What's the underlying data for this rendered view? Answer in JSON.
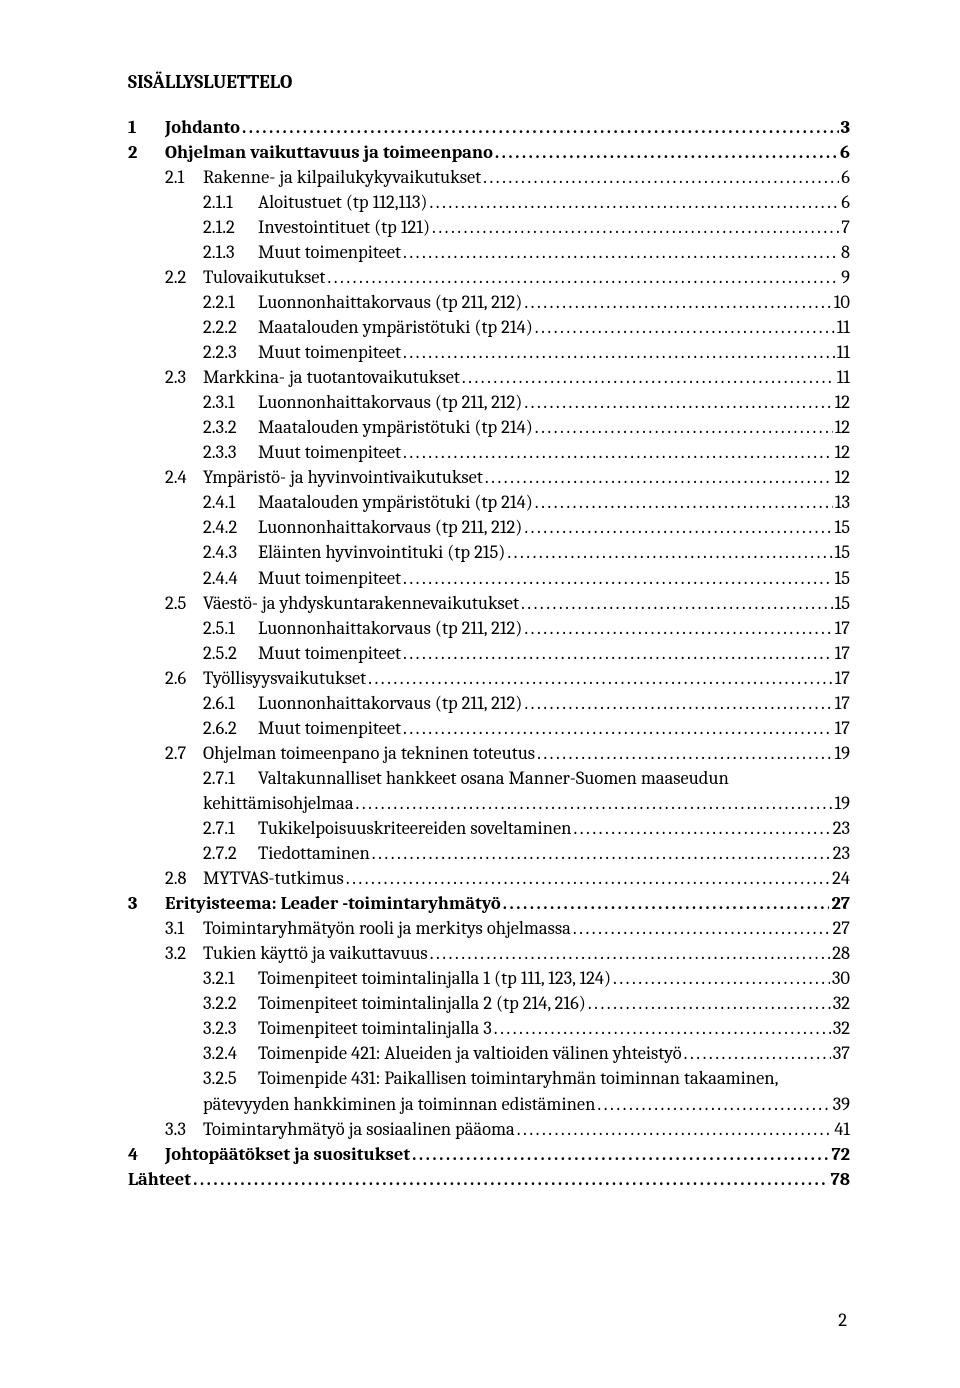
{
  "heading": "SISÄLLYSLUETTELO",
  "footer_page": "2",
  "toc": [
    {
      "level": 0,
      "bold": true,
      "num": "1",
      "title": "Johdanto",
      "page": "3",
      "num_w": "w-main"
    },
    {
      "level": 0,
      "bold": true,
      "num": "2",
      "title": "Ohjelman  vaikuttavuus ja toimeenpano",
      "page": "6",
      "num_w": "w-main"
    },
    {
      "level": 1,
      "bold": false,
      "num": "2.1",
      "title": "Rakenne- ja kilpailukykyvaikutukset",
      "page": "6",
      "num_w": "w-sub"
    },
    {
      "level": 2,
      "bold": false,
      "num": "2.1.1",
      "title": "Aloitustuet (tp 112,113)",
      "page": "6",
      "num_w": "w-subsub"
    },
    {
      "level": 2,
      "bold": false,
      "num": "2.1.2",
      "title": "Investointituet (tp 121)",
      "page": "7",
      "num_w": "w-subsub"
    },
    {
      "level": 2,
      "bold": false,
      "num": "2.1.3",
      "title": "Muut toimenpiteet",
      "page": "8",
      "num_w": "w-subsub"
    },
    {
      "level": 1,
      "bold": false,
      "num": "2.2",
      "title": "Tulovaikutukset",
      "page": "9",
      "num_w": "w-sub"
    },
    {
      "level": 2,
      "bold": false,
      "num": "2.2.1",
      "title": "Luonnonhaittakorvaus (tp 211, 212)",
      "page": "10",
      "num_w": "w-subsub"
    },
    {
      "level": 2,
      "bold": false,
      "num": "2.2.2",
      "title": "Maatalouden ympäristötuki (tp 214)",
      "page": "11",
      "num_w": "w-subsub"
    },
    {
      "level": 2,
      "bold": false,
      "num": "2.2.3",
      "title": "Muut toimenpiteet",
      "page": "11",
      "num_w": "w-subsub"
    },
    {
      "level": 1,
      "bold": false,
      "num": "2.3",
      "title": "Markkina- ja tuotantovaikutukset",
      "page": "11",
      "num_w": "w-sub"
    },
    {
      "level": 2,
      "bold": false,
      "num": "2.3.1",
      "title": "Luonnonhaittakorvaus (tp 211, 212)",
      "page": "12",
      "num_w": "w-subsub"
    },
    {
      "level": 2,
      "bold": false,
      "num": "2.3.2",
      "title": "Maatalouden ympäristötuki (tp 214)",
      "page": "12",
      "num_w": "w-subsub"
    },
    {
      "level": 2,
      "bold": false,
      "num": "2.3.3",
      "title": "Muut toimenpiteet",
      "page": "12",
      "num_w": "w-subsub"
    },
    {
      "level": 1,
      "bold": false,
      "num": "2.4",
      "title": "Ympäristö- ja hyvinvointivaikutukset",
      "page": "12",
      "num_w": "w-sub"
    },
    {
      "level": 2,
      "bold": false,
      "num": "2.4.1",
      "title": "Maatalouden ympäristötuki (tp 214)",
      "page": "13",
      "num_w": "w-subsub"
    },
    {
      "level": 2,
      "bold": false,
      "num": "2.4.2",
      "title": "Luonnonhaittakorvaus (tp 211, 212)",
      "page": "15",
      "num_w": "w-subsub"
    },
    {
      "level": 2,
      "bold": false,
      "num": "2.4.3",
      "title": "Eläinten hyvinvointituki (tp 215)",
      "page": "15",
      "num_w": "w-subsub"
    },
    {
      "level": 2,
      "bold": false,
      "num": "2.4.4",
      "title": "Muut toimenpiteet",
      "page": "15",
      "num_w": "w-subsub"
    },
    {
      "level": 1,
      "bold": false,
      "num": "2.5",
      "title": "Väestö- ja yhdyskuntarakennevaikutukset",
      "page": "15",
      "num_w": "w-sub"
    },
    {
      "level": 2,
      "bold": false,
      "num": "2.5.1",
      "title": "Luonnonhaittakorvaus (tp 211, 212)",
      "page": "17",
      "num_w": "w-subsub"
    },
    {
      "level": 2,
      "bold": false,
      "num": "2.5.2",
      "title": "Muut toimenpiteet",
      "page": "17",
      "num_w": "w-subsub"
    },
    {
      "level": 1,
      "bold": false,
      "num": "2.6",
      "title": "Työllisyysvaikutukset",
      "page": "17",
      "num_w": "w-sub"
    },
    {
      "level": 2,
      "bold": false,
      "num": "2.6.1",
      "title": "Luonnonhaittakorvaus (tp 211, 212)",
      "page": "17",
      "num_w": "w-subsub"
    },
    {
      "level": 2,
      "bold": false,
      "num": "2.6.2",
      "title": "Muut toimenpiteet",
      "page": "17",
      "num_w": "w-subsub"
    },
    {
      "level": 1,
      "bold": false,
      "num": "2.7",
      "title": "Ohjelman toimeenpano ja tekninen toteutus",
      "page": "19",
      "num_w": "w-sub"
    },
    {
      "level": 2,
      "bold": false,
      "num": "2.7.1",
      "title": "Valtakunnalliset    hankkeet    osana    Manner-Suomen    maaseudun",
      "page": null,
      "num_w": "w-subsub",
      "noleader": true
    },
    {
      "level": 2,
      "bold": false,
      "num": "",
      "title": "kehittämisohjelmaa",
      "page": "19",
      "num_w": "w-subsub",
      "continuation": true
    },
    {
      "level": 2,
      "bold": false,
      "num": "2.7.1",
      "title": "Tukikelpoisuuskriteereiden soveltaminen",
      "page": "23",
      "num_w": "w-subsub"
    },
    {
      "level": 2,
      "bold": false,
      "num": "2.7.2",
      "title": "Tiedottaminen",
      "page": "23",
      "num_w": "w-subsub"
    },
    {
      "level": 1,
      "bold": false,
      "num": "2.8",
      "title": "MYTVAS-tutkimus",
      "page": "24",
      "num_w": "w-sub"
    },
    {
      "level": 0,
      "bold": true,
      "num": "3",
      "title": "Erityisteema: Leader -toimintaryhmätyö",
      "page": "27",
      "num_w": "w-main"
    },
    {
      "level": 1,
      "bold": false,
      "num": "3.1",
      "title": "Toimintaryhmätyön rooli ja merkitys ohjelmassa",
      "page": "27",
      "num_w": "w-sub"
    },
    {
      "level": 1,
      "bold": false,
      "num": "3.2",
      "title": "Tukien käyttö ja vaikuttavuus",
      "page": "28",
      "num_w": "w-sub"
    },
    {
      "level": 2,
      "bold": false,
      "num": "3.2.1",
      "title": "Toimenpiteet toimintalinjalla 1 (tp 111, 123, 124)",
      "page": "30",
      "num_w": "w-subsub"
    },
    {
      "level": 2,
      "bold": false,
      "num": "3.2.2",
      "title": "Toimenpiteet toimintalinjalla 2 (tp 214, 216)",
      "page": "32",
      "num_w": "w-subsub"
    },
    {
      "level": 2,
      "bold": false,
      "num": "3.2.3",
      "title": "Toimenpiteet toimintalinjalla 3",
      "page": "32",
      "num_w": "w-subsub"
    },
    {
      "level": 2,
      "bold": false,
      "num": "3.2.4",
      "title": "Toimenpide 421: Alueiden ja valtioiden välinen yhteistyö",
      "page": "37",
      "num_w": "w-subsub"
    },
    {
      "level": 2,
      "bold": false,
      "num": "3.2.5",
      "title": "Toimenpide  431:  Paikallisen  toimintaryhmän  toiminnan  takaaminen,",
      "page": null,
      "num_w": "w-subsub",
      "noleader": true
    },
    {
      "level": 2,
      "bold": false,
      "num": "",
      "title": "pätevyyden hankkiminen ja toiminnan edistäminen",
      "page": "39",
      "num_w": "w-subsub",
      "continuation": true
    },
    {
      "level": 1,
      "bold": false,
      "num": "3.3",
      "title": "Toimintaryhmätyö ja sosiaalinen pääoma",
      "page": "41",
      "num_w": "w-sub"
    },
    {
      "level": 0,
      "bold": true,
      "num": "4",
      "title": "Johtopäätökset ja suositukset",
      "page": "72",
      "num_w": "w-main"
    },
    {
      "level": 0,
      "bold": true,
      "num": "",
      "title": "Lähteet",
      "page": "78",
      "num_w": "",
      "nonum": true
    }
  ]
}
